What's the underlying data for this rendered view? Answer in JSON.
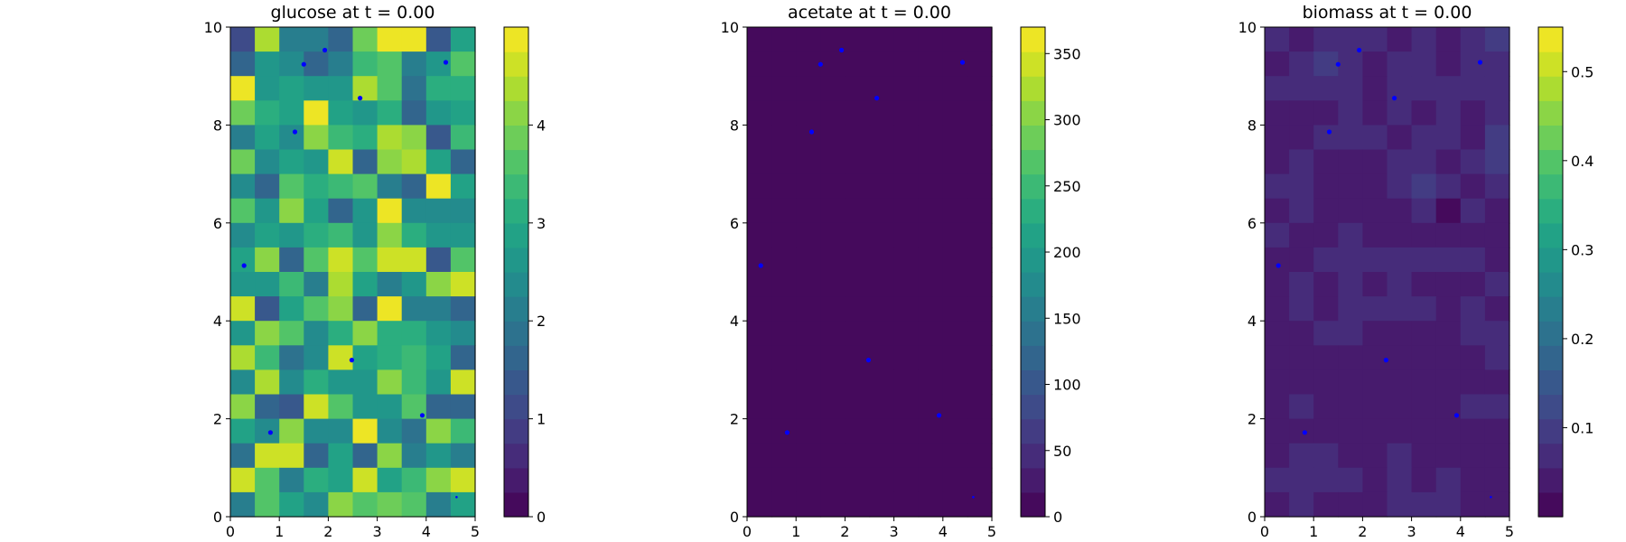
{
  "chart_data": [
    {
      "type": "heatmap",
      "title": "glucose at t = 0.00",
      "xlim": [
        0,
        5
      ],
      "ylim": [
        0,
        10
      ],
      "xticks": [
        0,
        1,
        2,
        3,
        4,
        5
      ],
      "yticks": [
        0,
        2,
        4,
        6,
        8,
        10
      ],
      "grid_cols": 10,
      "grid_rows": 20,
      "colormap": "viridis",
      "colorbar": {
        "range": [
          0,
          5
        ],
        "levels": 20,
        "ticks": [
          0,
          1,
          2,
          3,
          4
        ]
      },
      "values_rows_top_to_bottom": [
        [
          1.2,
          4.4,
          2.0,
          2.0,
          1.7,
          3.9,
          4.8,
          4.8,
          1.4,
          2.9
        ],
        [
          1.6,
          2.6,
          2.4,
          1.7,
          2.1,
          3.4,
          3.6,
          2.1,
          2.6,
          3.5
        ],
        [
          4.8,
          2.5,
          2.9,
          2.6,
          2.7,
          4.3,
          3.5,
          1.8,
          3.0,
          3.1
        ],
        [
          3.8,
          3.0,
          2.8,
          4.9,
          2.8,
          2.6,
          3.2,
          1.6,
          2.7,
          2.8
        ],
        [
          2.2,
          2.8,
          2.3,
          4.1,
          3.3,
          3.0,
          4.4,
          4.2,
          1.3,
          3.4
        ],
        [
          3.8,
          2.4,
          2.8,
          2.6,
          4.5,
          1.6,
          4.0,
          4.4,
          2.9,
          1.5
        ],
        [
          2.4,
          1.6,
          3.7,
          3.2,
          3.4,
          3.7,
          2.2,
          1.5,
          5.0,
          2.8
        ],
        [
          3.5,
          2.6,
          4.0,
          2.8,
          1.6,
          2.5,
          4.8,
          2.3,
          2.4,
          2.4
        ],
        [
          2.3,
          2.9,
          2.6,
          3.1,
          3.4,
          2.7,
          4.1,
          3.2,
          2.6,
          2.6
        ],
        [
          2.8,
          4.0,
          1.6,
          3.7,
          4.6,
          3.6,
          4.6,
          4.6,
          1.4,
          3.6
        ],
        [
          2.6,
          2.6,
          3.3,
          2.2,
          4.3,
          2.8,
          2.1,
          2.6,
          4.2,
          4.6
        ],
        [
          4.5,
          1.4,
          2.8,
          3.6,
          4.0,
          1.6,
          4.9,
          2.1,
          2.1,
          1.5
        ],
        [
          2.7,
          4.1,
          3.6,
          2.4,
          3.1,
          4.0,
          3.0,
          3.0,
          2.7,
          2.3
        ],
        [
          4.4,
          3.4,
          1.9,
          2.4,
          4.6,
          2.8,
          3.0,
          3.4,
          2.9,
          1.6
        ],
        [
          2.4,
          4.3,
          2.3,
          3.0,
          2.7,
          2.7,
          4.1,
          3.4,
          2.5,
          4.5
        ],
        [
          4.2,
          1.5,
          1.4,
          4.5,
          3.5,
          2.7,
          2.6,
          3.6,
          1.5,
          1.5
        ],
        [
          2.8,
          2.4,
          4.0,
          2.3,
          2.3,
          4.8,
          2.3,
          1.8,
          4.0,
          3.3
        ],
        [
          1.8,
          4.5,
          4.5,
          1.5,
          2.8,
          1.5,
          4.2,
          2.2,
          2.7,
          2.2
        ],
        [
          4.7,
          3.6,
          2.2,
          3.1,
          2.9,
          4.5,
          2.9,
          3.3,
          4.0,
          4.6
        ],
        [
          2.2,
          3.6,
          2.8,
          2.4,
          4.0,
          3.6,
          3.9,
          3.6,
          2.2,
          2.8
        ]
      ],
      "markers": [
        [
          1.93,
          9.53
        ],
        [
          1.5,
          9.24
        ],
        [
          4.4,
          9.28
        ],
        [
          2.65,
          8.55
        ],
        [
          1.32,
          7.86
        ],
        [
          0.28,
          5.13
        ],
        [
          2.48,
          3.2
        ],
        [
          3.92,
          2.07
        ],
        [
          0.82,
          1.72
        ],
        [
          4.62,
          0.4
        ]
      ],
      "marker_color": "#0000ff"
    },
    {
      "type": "heatmap",
      "title": "acetate at t = 0.00",
      "xlim": [
        0,
        5
      ],
      "ylim": [
        0,
        10
      ],
      "xticks": [
        0,
        1,
        2,
        3,
        4,
        5
      ],
      "yticks": [
        0,
        2,
        4,
        6,
        8,
        10
      ],
      "grid_cols": 10,
      "grid_rows": 20,
      "colormap": "viridis",
      "colorbar": {
        "range": [
          0,
          370
        ],
        "levels": 20,
        "ticks": [
          0,
          50,
          100,
          150,
          200,
          250,
          300,
          350
        ]
      },
      "uniform_value": 0,
      "markers": [
        [
          1.93,
          9.53
        ],
        [
          1.5,
          9.24
        ],
        [
          4.4,
          9.28
        ],
        [
          2.65,
          8.55
        ],
        [
          1.32,
          7.86
        ],
        [
          0.28,
          5.13
        ],
        [
          2.48,
          3.2
        ],
        [
          3.92,
          2.07
        ],
        [
          0.82,
          1.72
        ],
        [
          4.62,
          0.4
        ]
      ],
      "marker_color": "#0000ff"
    },
    {
      "type": "heatmap",
      "title": "biomass at t = 0.00",
      "xlim": [
        0,
        5
      ],
      "ylim": [
        0,
        10
      ],
      "xticks": [
        0,
        1,
        2,
        3,
        4,
        5
      ],
      "yticks": [
        0,
        2,
        4,
        6,
        8,
        10
      ],
      "grid_cols": 10,
      "grid_rows": 20,
      "colormap": "viridis",
      "colorbar": {
        "range": [
          0.0,
          0.55
        ],
        "levels": 20,
        "ticks": [
          0.1,
          0.2,
          0.3,
          0.4,
          0.5
        ]
      },
      "values_rows_top_to_bottom": [
        [
          0.07,
          0.05,
          0.06,
          0.06,
          0.08,
          0.05,
          0.06,
          0.05,
          0.06,
          0.09
        ],
        [
          0.04,
          0.06,
          0.1,
          0.08,
          0.03,
          0.06,
          0.06,
          0.05,
          0.06,
          0.06
        ],
        [
          0.07,
          0.06,
          0.06,
          0.06,
          0.05,
          0.07,
          0.07,
          0.07,
          0.06,
          0.06
        ],
        [
          0.03,
          0.03,
          0.05,
          0.08,
          0.05,
          0.07,
          0.05,
          0.06,
          0.03,
          0.06
        ],
        [
          0.04,
          0.05,
          0.06,
          0.08,
          0.07,
          0.05,
          0.06,
          0.07,
          0.05,
          0.09
        ],
        [
          0.04,
          0.07,
          0.05,
          0.05,
          0.03,
          0.06,
          0.07,
          0.04,
          0.06,
          0.09
        ],
        [
          0.06,
          0.06,
          0.03,
          0.05,
          0.05,
          0.08,
          0.09,
          0.07,
          0.05,
          0.07
        ],
        [
          0.03,
          0.06,
          0.03,
          0.03,
          0.03,
          0.05,
          0.06,
          0.02,
          0.08,
          0.05
        ],
        [
          0.06,
          0.04,
          0.04,
          0.07,
          0.05,
          0.05,
          0.05,
          0.04,
          0.04,
          0.03
        ],
        [
          0.04,
          0.04,
          0.07,
          0.07,
          0.07,
          0.07,
          0.07,
          0.08,
          0.06,
          0.04
        ],
        [
          0.05,
          0.06,
          0.05,
          0.06,
          0.05,
          0.06,
          0.05,
          0.04,
          0.05,
          0.06
        ],
        [
          0.03,
          0.07,
          0.05,
          0.06,
          0.06,
          0.06,
          0.06,
          0.05,
          0.08,
          0.05
        ],
        [
          0.04,
          0.04,
          0.06,
          0.06,
          0.04,
          0.04,
          0.05,
          0.03,
          0.08,
          0.06
        ],
        [
          0.04,
          0.04,
          0.03,
          0.03,
          0.05,
          0.05,
          0.04,
          0.04,
          0.05,
          0.06
        ],
        [
          0.04,
          0.05,
          0.05,
          0.05,
          0.04,
          0.05,
          0.04,
          0.05,
          0.05,
          0.03
        ],
        [
          0.04,
          0.06,
          0.05,
          0.05,
          0.05,
          0.04,
          0.04,
          0.05,
          0.06,
          0.06
        ],
        [
          0.04,
          0.05,
          0.05,
          0.04,
          0.03,
          0.03,
          0.04,
          0.04,
          0.05,
          0.05
        ],
        [
          0.05,
          0.06,
          0.06,
          0.05,
          0.05,
          0.06,
          0.05,
          0.05,
          0.05,
          0.05
        ],
        [
          0.06,
          0.07,
          0.06,
          0.06,
          0.05,
          0.06,
          0.05,
          0.06,
          0.05,
          0.04
        ],
        [
          0.03,
          0.07,
          0.05,
          0.04,
          0.05,
          0.06,
          0.06,
          0.06,
          0.05,
          0.04
        ]
      ],
      "markers": [
        [
          1.93,
          9.53
        ],
        [
          1.5,
          9.24
        ],
        [
          4.4,
          9.28
        ],
        [
          2.65,
          8.55
        ],
        [
          1.32,
          7.86
        ],
        [
          0.28,
          5.13
        ],
        [
          2.48,
          3.2
        ],
        [
          3.92,
          2.07
        ],
        [
          0.82,
          1.72
        ],
        [
          4.62,
          0.4
        ]
      ],
      "marker_color": "#0000ff"
    }
  ]
}
